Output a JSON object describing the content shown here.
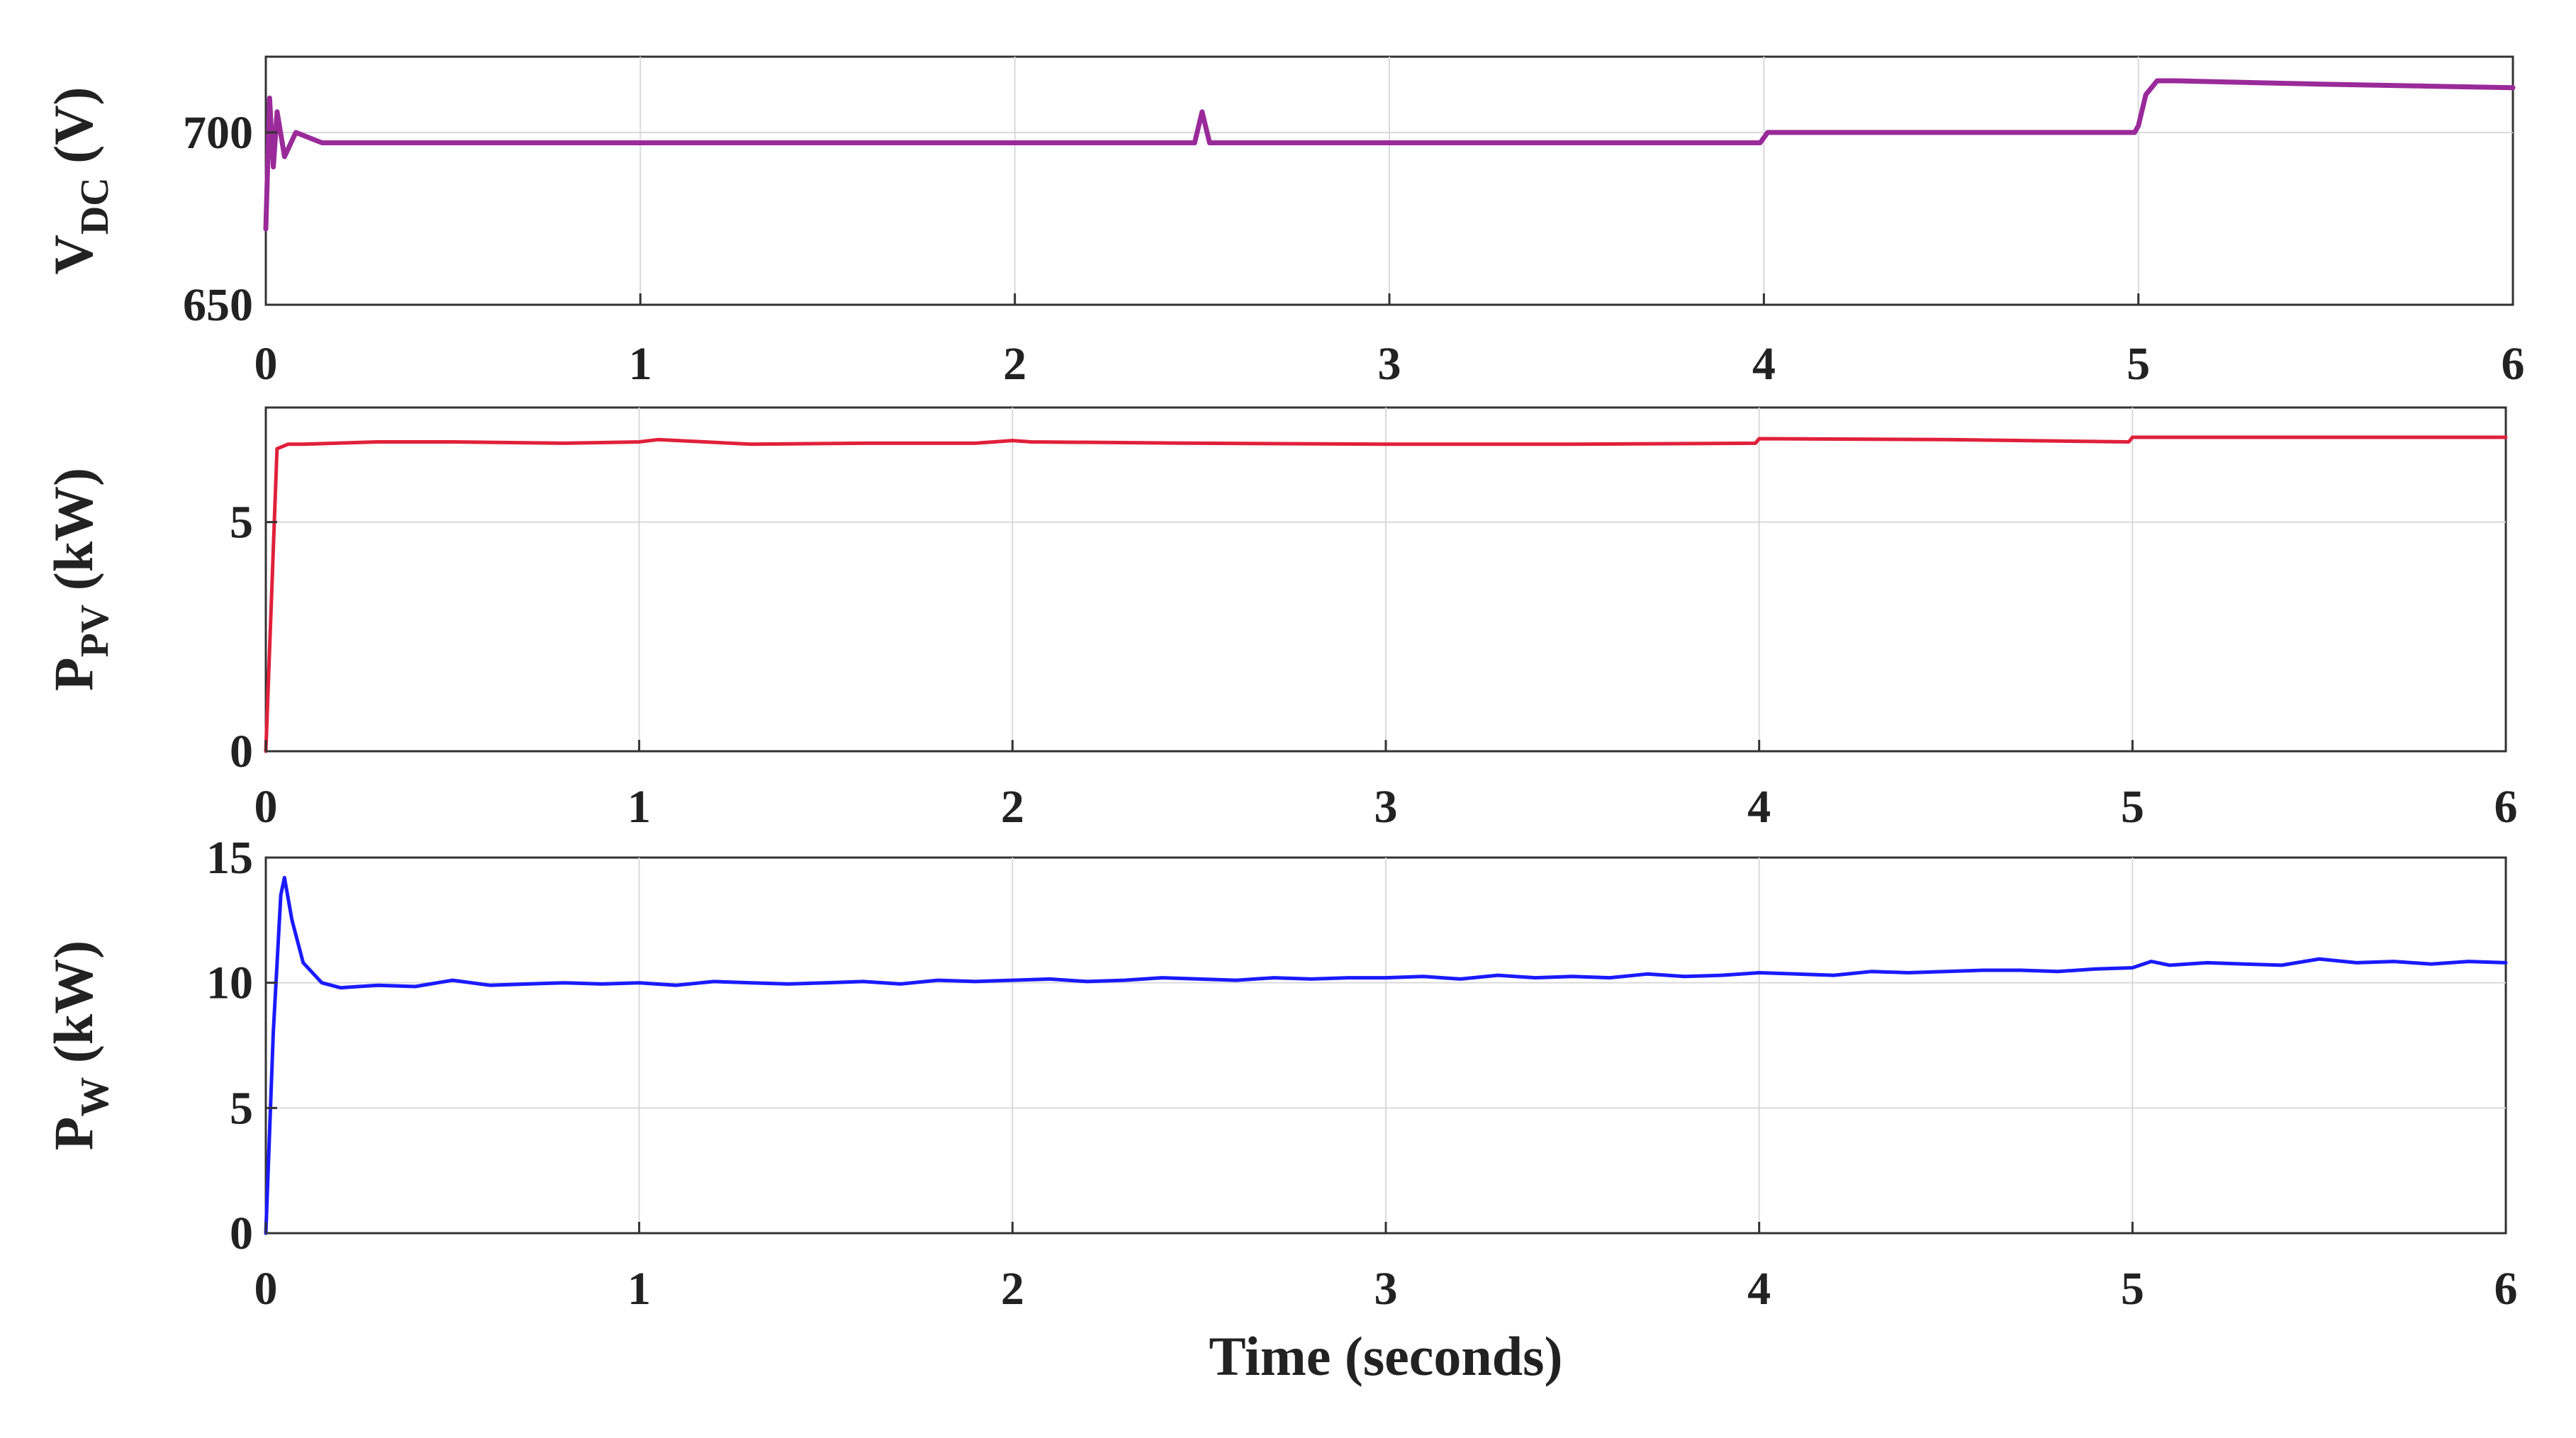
{
  "chart_data": [
    {
      "type": "line",
      "ylabel": {
        "main": "V",
        "sub": "DC",
        "unit": " (V)"
      },
      "xlabel": "",
      "xlim": [
        0,
        6
      ],
      "ylim": [
        650,
        722
      ],
      "xticks": [
        0,
        1,
        2,
        3,
        4,
        5,
        6
      ],
      "yticks": [
        650,
        700
      ],
      "grid": true,
      "series": [
        {
          "color": "#9a2a9a",
          "x": [
            0,
            0.01,
            0.02,
            0.03,
            0.05,
            0.08,
            0.15,
            0.5,
            1,
            1.5,
            2,
            2.48,
            2.5,
            2.52,
            3,
            3.5,
            3.99,
            4.01,
            4.5,
            4.99,
            5.0,
            5.02,
            5.05,
            5.1,
            5.5,
            6
          ],
          "y": [
            672,
            710,
            690,
            706,
            693,
            700,
            697,
            697,
            697,
            697,
            697,
            697,
            706,
            697,
            697,
            697,
            697,
            700,
            700,
            700,
            702,
            711,
            715,
            715,
            714,
            713
          ]
        }
      ]
    },
    {
      "type": "line",
      "ylabel": {
        "main": "P",
        "sub": "PV",
        "unit": " (kW)"
      },
      "xlabel": "",
      "xlim": [
        0,
        6
      ],
      "ylim": [
        0,
        7.5
      ],
      "xticks": [
        0,
        1,
        2,
        3,
        4,
        5,
        6
      ],
      "yticks": [
        0,
        5
      ],
      "grid": true,
      "series": [
        {
          "color": "#e0203a",
          "x": [
            0,
            0.03,
            0.06,
            0.1,
            0.3,
            0.5,
            0.8,
            1.0,
            1.05,
            1.3,
            1.6,
            1.9,
            2.0,
            2.05,
            2.5,
            3.0,
            3.5,
            3.99,
            4.0,
            4.5,
            4.99,
            5.0,
            5.5,
            6.0
          ],
          "y": [
            0,
            6.6,
            6.7,
            6.7,
            6.75,
            6.75,
            6.72,
            6.75,
            6.8,
            6.7,
            6.72,
            6.72,
            6.78,
            6.75,
            6.72,
            6.7,
            6.7,
            6.72,
            6.82,
            6.8,
            6.75,
            6.85,
            6.85,
            6.85
          ]
        }
      ]
    },
    {
      "type": "line",
      "ylabel": {
        "main": "P",
        "sub": "W",
        "unit": " (kW)"
      },
      "xlabel": "Time (seconds)",
      "xlim": [
        0,
        6
      ],
      "ylim": [
        0,
        15
      ],
      "xticks": [
        0,
        1,
        2,
        3,
        4,
        5,
        6
      ],
      "yticks": [
        0,
        5,
        10,
        15
      ],
      "grid": true,
      "series": [
        {
          "color": "#1a1aff",
          "x": [
            0,
            0.02,
            0.04,
            0.05,
            0.07,
            0.1,
            0.15,
            0.2,
            0.3,
            0.4,
            0.5,
            0.6,
            0.7,
            0.8,
            0.9,
            1.0,
            1.1,
            1.2,
            1.3,
            1.4,
            1.5,
            1.6,
            1.7,
            1.8,
            1.9,
            2.0,
            2.1,
            2.2,
            2.3,
            2.4,
            2.5,
            2.6,
            2.7,
            2.8,
            2.9,
            3.0,
            3.1,
            3.2,
            3.3,
            3.4,
            3.5,
            3.6,
            3.7,
            3.8,
            3.9,
            4.0,
            4.1,
            4.2,
            4.3,
            4.4,
            4.5,
            4.6,
            4.7,
            4.8,
            4.9,
            5.0,
            5.05,
            5.1,
            5.2,
            5.3,
            5.4,
            5.5,
            5.6,
            5.7,
            5.8,
            5.9,
            6.0
          ],
          "y": [
            0,
            8,
            13.5,
            14.2,
            12.5,
            10.8,
            10.0,
            9.8,
            9.9,
            9.85,
            10.1,
            9.9,
            9.95,
            10.0,
            9.95,
            10.0,
            9.9,
            10.05,
            10.0,
            9.95,
            10.0,
            10.05,
            9.95,
            10.1,
            10.05,
            10.1,
            10.15,
            10.05,
            10.1,
            10.2,
            10.15,
            10.1,
            10.2,
            10.15,
            10.2,
            10.2,
            10.25,
            10.15,
            10.3,
            10.2,
            10.25,
            10.2,
            10.35,
            10.25,
            10.3,
            10.4,
            10.35,
            10.3,
            10.45,
            10.4,
            10.45,
            10.5,
            10.5,
            10.45,
            10.55,
            10.6,
            10.85,
            10.7,
            10.8,
            10.75,
            10.7,
            10.95,
            10.8,
            10.85,
            10.75,
            10.85,
            10.8
          ]
        }
      ]
    }
  ]
}
